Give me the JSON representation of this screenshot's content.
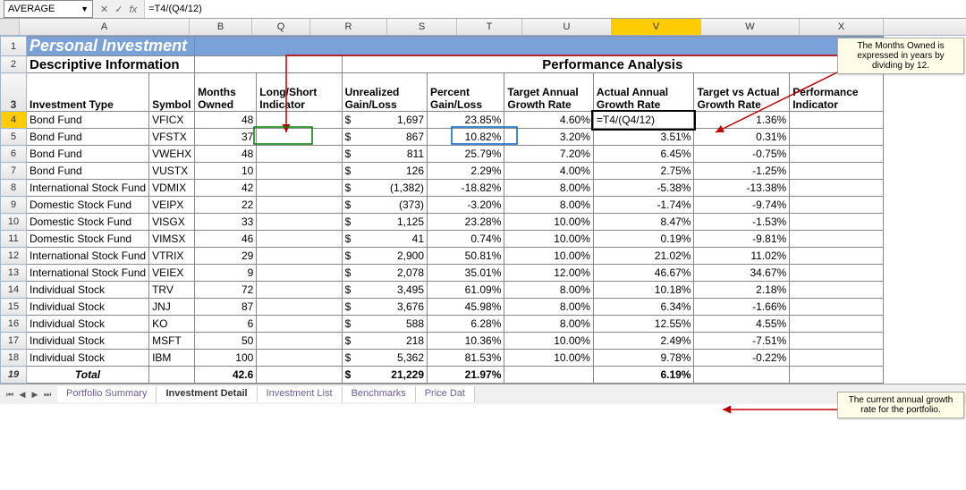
{
  "formula_bar": {
    "name_box": "AVERAGE",
    "formula": "=T4/(Q4/12)"
  },
  "columns": [
    "A",
    "B",
    "Q",
    "R",
    "S",
    "T",
    "U",
    "V",
    "W",
    "X"
  ],
  "active_column": "V",
  "active_row": 4,
  "title": "Personal Investment",
  "section_left": "Descriptive Information",
  "section_right": "Performance Analysis",
  "headers": {
    "inv_type": "Investment Type",
    "symbol": "Symbol",
    "months": "Months Owned",
    "ls": "Long/Short Indicator",
    "ugl": "Unrealized Gain/Loss",
    "pgl": "Percent Gain/Loss",
    "tagr": "Target Annual Growth Rate",
    "aagr": "Actual Annual Growth Rate",
    "tva": "Target vs Actual Growth Rate",
    "perf": "Performance Indicator"
  },
  "rows": [
    {
      "n": 4,
      "type": "Bond Fund",
      "sym": "VFICX",
      "mo": "48",
      "ugl": "1,697",
      "pgl": "23.85%",
      "tagr": "4.60%",
      "aagr": "=T4/(Q4/12)",
      "tva": "1.36%",
      "edit": true
    },
    {
      "n": 5,
      "type": "Bond Fund",
      "sym": "VFSTX",
      "mo": "37",
      "ugl": "867",
      "pgl": "10.82%",
      "tagr": "3.20%",
      "aagr": "3.51%",
      "tva": "0.31%"
    },
    {
      "n": 6,
      "type": "Bond Fund",
      "sym": "VWEHX",
      "mo": "48",
      "ugl": "811",
      "pgl": "25.79%",
      "tagr": "7.20%",
      "aagr": "6.45%",
      "tva": "-0.75%"
    },
    {
      "n": 7,
      "type": "Bond Fund",
      "sym": "VUSTX",
      "mo": "10",
      "ugl": "126",
      "pgl": "2.29%",
      "tagr": "4.00%",
      "aagr": "2.75%",
      "tva": "-1.25%"
    },
    {
      "n": 8,
      "type": "International Stock Fund",
      "sym": "VDMIX",
      "mo": "42",
      "ugl": "(1,382)",
      "pgl": "-18.82%",
      "tagr": "8.00%",
      "aagr": "-5.38%",
      "tva": "-13.38%"
    },
    {
      "n": 9,
      "type": "Domestic Stock Fund",
      "sym": "VEIPX",
      "mo": "22",
      "ugl": "(373)",
      "pgl": "-3.20%",
      "tagr": "8.00%",
      "aagr": "-1.74%",
      "tva": "-9.74%"
    },
    {
      "n": 10,
      "type": "Domestic Stock Fund",
      "sym": "VISGX",
      "mo": "33",
      "ugl": "1,125",
      "pgl": "23.28%",
      "tagr": "10.00%",
      "aagr": "8.47%",
      "tva": "-1.53%"
    },
    {
      "n": 11,
      "type": "Domestic Stock Fund",
      "sym": "VIMSX",
      "mo": "46",
      "ugl": "41",
      "pgl": "0.74%",
      "tagr": "10.00%",
      "aagr": "0.19%",
      "tva": "-9.81%"
    },
    {
      "n": 12,
      "type": "International Stock Fund",
      "sym": "VTRIX",
      "mo": "29",
      "ugl": "2,900",
      "pgl": "50.81%",
      "tagr": "10.00%",
      "aagr": "21.02%",
      "tva": "11.02%"
    },
    {
      "n": 13,
      "type": "International Stock Fund",
      "sym": "VEIEX",
      "mo": "9",
      "ugl": "2,078",
      "pgl": "35.01%",
      "tagr": "12.00%",
      "aagr": "46.67%",
      "tva": "34.67%"
    },
    {
      "n": 14,
      "type": "Individual Stock",
      "sym": "TRV",
      "mo": "72",
      "ugl": "3,495",
      "pgl": "61.09%",
      "tagr": "8.00%",
      "aagr": "10.18%",
      "tva": "2.18%"
    },
    {
      "n": 15,
      "type": "Individual Stock",
      "sym": "JNJ",
      "mo": "87",
      "ugl": "3,676",
      "pgl": "45.98%",
      "tagr": "8.00%",
      "aagr": "6.34%",
      "tva": "-1.66%"
    },
    {
      "n": 16,
      "type": "Individual Stock",
      "sym": "KO",
      "mo": "6",
      "ugl": "588",
      "pgl": "6.28%",
      "tagr": "8.00%",
      "aagr": "12.55%",
      "tva": "4.55%"
    },
    {
      "n": 17,
      "type": "Individual Stock",
      "sym": "MSFT",
      "mo": "50",
      "ugl": "218",
      "pgl": "10.36%",
      "tagr": "10.00%",
      "aagr": "2.49%",
      "tva": "-7.51%"
    },
    {
      "n": 18,
      "type": "Individual Stock",
      "sym": "IBM",
      "mo": "100",
      "ugl": "5,362",
      "pgl": "81.53%",
      "tagr": "10.00%",
      "aagr": "9.78%",
      "tva": "-0.22%"
    }
  ],
  "total": {
    "label": "Total",
    "mo": "42.6",
    "ugl": "21,229",
    "pgl": "21.97%",
    "aagr": "6.19%"
  },
  "callout1": "The Months Owned is expressed in years by dividing by 12.",
  "callout2": "The current annual growth rate for the portfolio.",
  "tabs": [
    "Portfolio Summary",
    "Investment Detail",
    "Investment List",
    "Benchmarks",
    "Price Dat"
  ],
  "active_tab": 1,
  "colors": {
    "title_bg": "#7aa2d8",
    "title_fg": "#ffffff",
    "header_bg": "#e5e5e5",
    "sel_bg": "#ffcc00",
    "callout_bg": "#fffde7",
    "arrow": "#c00000",
    "range_border": "#0066cc"
  }
}
